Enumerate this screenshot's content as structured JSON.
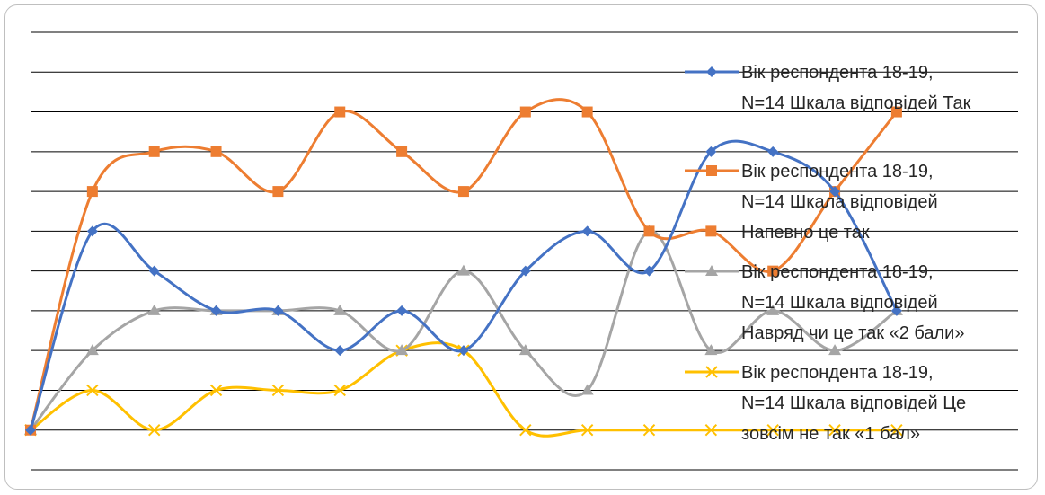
{
  "chart_data": {
    "type": "line",
    "title": "",
    "xlabel": "",
    "ylabel": "",
    "x": [
      1,
      2,
      3,
      4,
      5,
      6,
      7,
      8,
      9,
      10,
      11,
      12,
      13,
      14,
      15
    ],
    "ylim": [
      -1,
      10
    ],
    "grid": true,
    "smooth": true,
    "legend_position": "right",
    "series": [
      {
        "name": "Вік респондента 18-19, N=14 Шкала відповідей Так",
        "legend_lines": [
          "Вік респондента 18-19,",
          "N=14 Шкала відповідей Так"
        ],
        "color": "#4472C4",
        "marker": "diamond",
        "values": [
          0,
          5,
          4,
          3,
          3,
          2,
          3,
          2,
          4,
          5,
          4,
          7,
          7,
          6,
          3
        ]
      },
      {
        "name": "Вік респондента 18-19, N=14 Шкала відповідей Напевно це так",
        "legend_lines": [
          "Вік респондента 18-19,",
          "N=14 Шкала відповідей",
          "Напевно це так"
        ],
        "color": "#ED7D31",
        "marker": "square",
        "values": [
          0,
          6,
          7,
          7,
          6,
          8,
          7,
          6,
          8,
          8,
          5,
          5,
          4,
          6,
          8
        ]
      },
      {
        "name": "Вік респондента 18-19, N=14 Шкала відповідей Навряд чи це так «2 бали»",
        "legend_lines": [
          "Вік респондента 18-19,",
          "N=14 Шкала відповідей",
          "Навряд чи це так «2 бали»"
        ],
        "color": "#A5A5A5",
        "marker": "triangle",
        "values": [
          0,
          2,
          3,
          3,
          3,
          3,
          2,
          4,
          2,
          1,
          5,
          2,
          3,
          2,
          3
        ]
      },
      {
        "name": "Вік респондента 18-19, N=14 Шкала відповідей Це зовсім не так «1 бал»",
        "legend_lines": [
          "Вік респондента 18-19,",
          "N=14 Шкала відповідей Це",
          "зовсім не так «1 бал»"
        ],
        "color": "#FFC000",
        "marker": "x",
        "values": [
          0,
          1,
          0,
          1,
          1,
          1,
          2,
          2,
          0,
          0,
          0,
          0,
          0,
          0,
          0
        ]
      }
    ]
  }
}
